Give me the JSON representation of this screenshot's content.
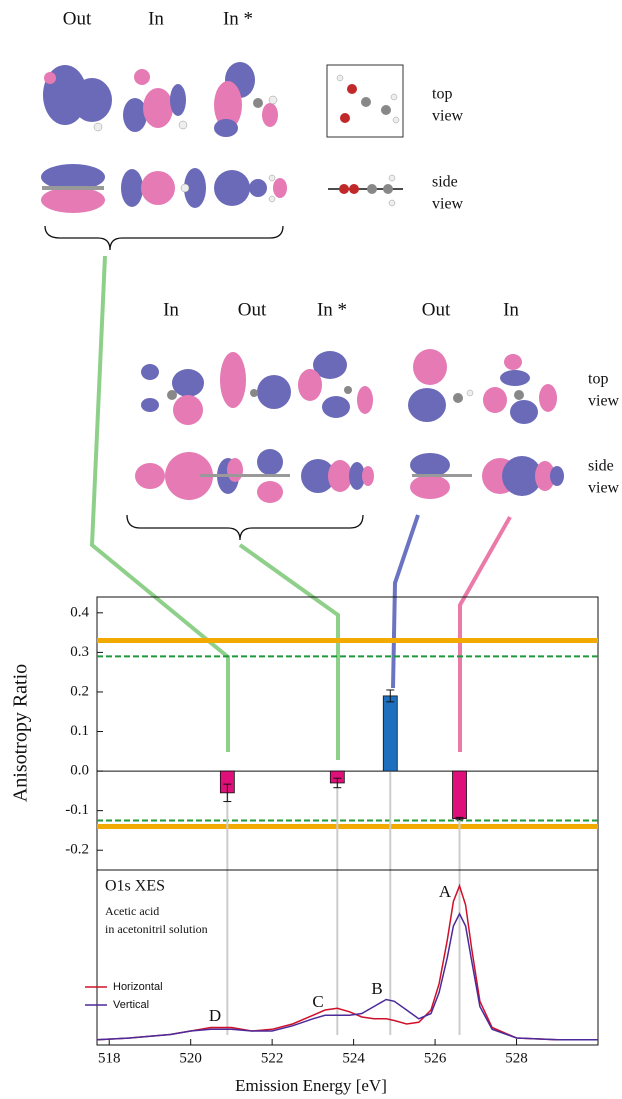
{
  "figure": {
    "group1_labels": [
      "Out",
      "In",
      "In *"
    ],
    "group1_views": [
      [
        "top",
        "view"
      ],
      [
        "side",
        "view"
      ]
    ],
    "group2_labels": [
      "In",
      "Out",
      "In *",
      "Out",
      "In"
    ],
    "group2_views": [
      [
        "top",
        "view"
      ],
      [
        "side",
        "view"
      ]
    ]
  },
  "chart_data": [
    {
      "type": "bar",
      "ylabel": "Anisotropy Ratio",
      "x": [
        520.9,
        523.6,
        524.9,
        526.6
      ],
      "values": [
        -0.055,
        -0.03,
        0.19,
        -0.12
      ],
      "errors": [
        0.022,
        0.012,
        0.015,
        0.003
      ],
      "colors": [
        "#e0107a",
        "#e0107a",
        "#1f6fbf",
        "#e0107a"
      ],
      "xlim": [
        517.7,
        530
      ],
      "ylim": [
        -0.25,
        0.44
      ],
      "yticks": [
        -0.2,
        -0.1,
        {
          "value": 0,
          "label": "0.0"
        },
        0.1,
        0.2,
        0.3,
        0.4
      ],
      "reference_lines": [
        {
          "value": 0.33,
          "color": "#f2a900",
          "style": "solid"
        },
        {
          "value": 0.29,
          "color": "#1e9a3c",
          "style": "dashed"
        },
        {
          "value": -0.125,
          "color": "#1e9a3c",
          "style": "dashed"
        },
        {
          "value": -0.14,
          "color": "#f2a900",
          "style": "solid"
        }
      ]
    },
    {
      "type": "line",
      "title": "O1s XES",
      "subtitle": [
        "Acetic acid",
        "in acetonitril solution"
      ],
      "xlabel": "Emission Energy [eV]",
      "annotations": [
        "A",
        "B",
        "C",
        "D"
      ],
      "legend": "lower left",
      "x": [
        517.7,
        518.5,
        519.5,
        520.0,
        520.5,
        521.0,
        521.5,
        522.0,
        522.5,
        523.0,
        523.3,
        523.6,
        523.9,
        524.2,
        524.5,
        524.8,
        525.0,
        525.3,
        525.6,
        525.9,
        526.1,
        526.3,
        526.45,
        526.6,
        526.75,
        526.9,
        527.1,
        527.4,
        528.0,
        529.0,
        530.0
      ],
      "series": [
        {
          "name": "Horizontal",
          "color": "#d0102a",
          "values": [
            0.03,
            0.04,
            0.06,
            0.08,
            0.1,
            0.1,
            0.08,
            0.09,
            0.12,
            0.17,
            0.2,
            0.21,
            0.19,
            0.16,
            0.15,
            0.15,
            0.14,
            0.12,
            0.13,
            0.2,
            0.35,
            0.6,
            0.82,
            0.91,
            0.8,
            0.55,
            0.25,
            0.1,
            0.04,
            0.03,
            0.03
          ]
        },
        {
          "name": "Vertical",
          "color": "#4b2a9a",
          "values": [
            0.03,
            0.04,
            0.06,
            0.08,
            0.09,
            0.09,
            0.08,
            0.08,
            0.11,
            0.15,
            0.17,
            0.17,
            0.17,
            0.18,
            0.22,
            0.26,
            0.25,
            0.2,
            0.15,
            0.18,
            0.3,
            0.5,
            0.68,
            0.75,
            0.68,
            0.48,
            0.22,
            0.09,
            0.04,
            0.03,
            0.03
          ]
        }
      ],
      "xlim": [
        517.7,
        530
      ],
      "ylim": [
        0,
        1
      ],
      "xticks": [
        518,
        520,
        522,
        524,
        526,
        528
      ]
    }
  ]
}
